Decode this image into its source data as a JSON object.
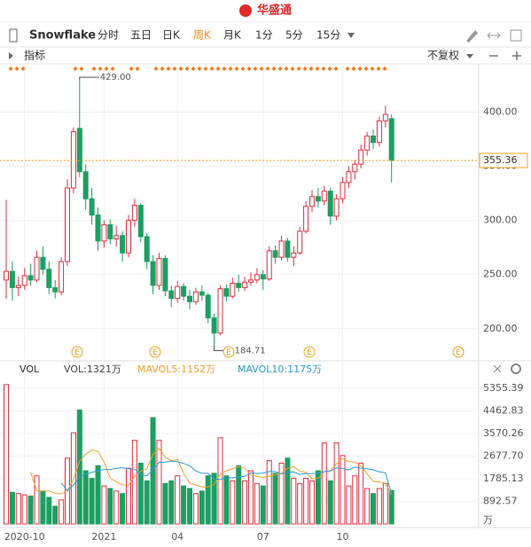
{
  "header": {
    "logo": "华盛通"
  },
  "toolbar": {
    "symbol": "Snowflake",
    "periods": [
      "分时",
      "五日",
      "日K",
      "周K",
      "月K",
      "1分",
      "5分",
      "15分"
    ],
    "active": "周K"
  },
  "indicator_bar": {
    "label": "指标",
    "adjust": "不复权"
  },
  "chart_data": [
    {
      "type": "candlestick",
      "up_color": "#e0303f",
      "down_color": "#1e9e63",
      "ylim": [
        172,
        443
      ],
      "yticks": [
        {
          "value": 200,
          "label": "200.00"
        },
        {
          "value": 250,
          "label": "250.00"
        },
        {
          "value": 300,
          "label": "300.00"
        },
        {
          "value": 350,
          "label": "350.00"
        },
        {
          "value": 400,
          "label": "400.00"
        }
      ],
      "last": 355.36,
      "last_color": "#f0a020",
      "annotations": [
        {
          "value": 429,
          "label": "429.00"
        },
        {
          "value": 184.71,
          "label": "184.71"
        }
      ],
      "events": [
        "E",
        "E",
        "E",
        "E",
        "E"
      ],
      "open": [
        245,
        253,
        238,
        240,
        249,
        245,
        266,
        255,
        238,
        234,
        262,
        330,
        385,
        345,
        320,
        305,
        281,
        296,
        283,
        286,
        270,
        300,
        314,
        285,
        262,
        240,
        265,
        235,
        228,
        239,
        230,
        225,
        234,
        231,
        210,
        196,
        237,
        230,
        242,
        238,
        243,
        245,
        250,
        246,
        272,
        266,
        281,
        266,
        270,
        290,
        313,
        322,
        318,
        327,
        304,
        320,
        335,
        345,
        352,
        365,
        378,
        372,
        392,
        394
      ],
      "high": [
        319,
        262,
        248,
        256,
        260,
        272,
        276,
        262,
        245,
        266,
        338,
        386,
        429,
        352,
        330,
        312,
        300,
        301,
        295,
        290,
        305,
        320,
        316,
        288,
        268,
        270,
        268,
        240,
        244,
        242,
        236,
        238,
        240,
        233,
        214,
        240,
        241,
        247,
        250,
        248,
        252,
        256,
        254,
        276,
        277,
        286,
        284,
        276,
        294,
        318,
        328,
        330,
        332,
        330,
        324,
        340,
        350,
        356,
        370,
        382,
        384,
        396,
        406,
        398
      ],
      "low": [
        228,
        226,
        230,
        236,
        240,
        243,
        250,
        232,
        228,
        231,
        258,
        325,
        340,
        310,
        296,
        272,
        275,
        278,
        276,
        262,
        266,
        294,
        280,
        255,
        232,
        236,
        230,
        220,
        224,
        226,
        218,
        222,
        226,
        205,
        184.71,
        194,
        225,
        228,
        234,
        235,
        240,
        242,
        236,
        244,
        260,
        263,
        262,
        258,
        268,
        288,
        308,
        312,
        314,
        296,
        300,
        316,
        330,
        338,
        348,
        360,
        366,
        368,
        386,
        335
      ],
      "close": [
        253,
        238,
        240,
        249,
        245,
        266,
        255,
        238,
        234,
        262,
        330,
        382,
        345,
        320,
        305,
        281,
        296,
        283,
        286,
        270,
        300,
        314,
        285,
        262,
        240,
        265,
        235,
        228,
        239,
        230,
        225,
        234,
        231,
        210,
        196,
        237,
        230,
        242,
        238,
        243,
        245,
        250,
        246,
        272,
        266,
        281,
        266,
        270,
        290,
        313,
        322,
        318,
        327,
        304,
        320,
        335,
        345,
        352,
        365,
        378,
        372,
        392,
        398,
        355.36
      ]
    },
    {
      "type": "volume",
      "title": "VOL",
      "unit": "万",
      "ylim": [
        0,
        5705
      ],
      "yticks": [
        892.57,
        1785.13,
        {
          "value": 2677.7,
          "label": "2677.70"
        },
        3570.26,
        4462.83,
        5355.39
      ],
      "categories": [
        null,
        null,
        null,
        "2020-10",
        null,
        null,
        null,
        null,
        null,
        null,
        null,
        null,
        null,
        null,
        null,
        null,
        "2021",
        null,
        null,
        null,
        null,
        null,
        null,
        null,
        null,
        null,
        null,
        null,
        "04",
        null,
        null,
        null,
        null,
        null,
        null,
        null,
        null,
        null,
        null,
        null,
        null,
        null,
        "07",
        null,
        null,
        null,
        null,
        null,
        null,
        null,
        null,
        null,
        null,
        null,
        null,
        "10",
        null,
        null,
        null,
        null,
        null,
        null,
        null,
        null
      ],
      "series": [
        {
          "name": "VOL:1321万",
          "color": "#444444",
          "values": [
            5500,
            1250,
            1200,
            1150,
            1100,
            1900,
            1300,
            1050,
            700,
            950,
            2600,
            3600,
            4500,
            2100,
            1800,
            2300,
            1500,
            1400,
            1300,
            1200,
            2200,
            3300,
            2400,
            1700,
            4200,
            3300,
            1600,
            1700,
            1900,
            1500,
            1400,
            1200,
            1300,
            1900,
            2000,
            3400,
            1900,
            1700,
            2300,
            1700,
            2100,
            1600,
            1500,
            2500,
            2000,
            2400,
            2600,
            1800,
            1600,
            1800,
            1700,
            2100,
            3200,
            1700,
            3200,
            2700,
            1500,
            1900,
            2400,
            1400,
            1200,
            1400,
            1600,
            1321
          ]
        },
        {
          "name": "MAVOL5:1152万",
          "color": "#f0a030",
          "values": [
            null,
            null,
            null,
            null,
            2040,
            1320,
            1300,
            1300,
            1210,
            1180,
            1320,
            1780,
            2470,
            2750,
            2920,
            2860,
            2440,
            1820,
            1660,
            1540,
            1520,
            1880,
            2080,
            2180,
            2760,
            2980,
            2640,
            2500,
            2540,
            2000,
            1620,
            1540,
            1460,
            1460,
            1560,
            1960,
            2100,
            2180,
            2260,
            2200,
            1940,
            1880,
            1840,
            1880,
            1940,
            2000,
            2200,
            2260,
            2080,
            2040,
            1780,
            1800,
            2060,
            2100,
            2380,
            2580,
            2460,
            2440,
            2300,
            1980,
            1680,
            1660,
            1600,
            1152
          ]
        },
        {
          "name": "MAVOL10:1175万",
          "color": "#2f9bd6",
          "values": [
            null,
            null,
            null,
            null,
            null,
            null,
            null,
            null,
            null,
            1620,
            1310,
            1540,
            1860,
            1960,
            2040,
            2100,
            2150,
            2150,
            2190,
            2220,
            2180,
            2160,
            1950,
            1900,
            2150,
            2430,
            2440,
            2480,
            2460,
            2390,
            2300,
            2090,
            2000,
            2000,
            1780,
            1760,
            1820,
            1820,
            1860,
            1880,
            2020,
            1990,
            2010,
            2070,
            2070,
            1970,
            2040,
            2050,
            1960,
            1990,
            1990,
            2000,
            2070,
            2090,
            2210,
            2190,
            2130,
            2250,
            2200,
            2180,
            2130,
            2060,
            2020,
            1175
          ]
        }
      ]
    }
  ]
}
